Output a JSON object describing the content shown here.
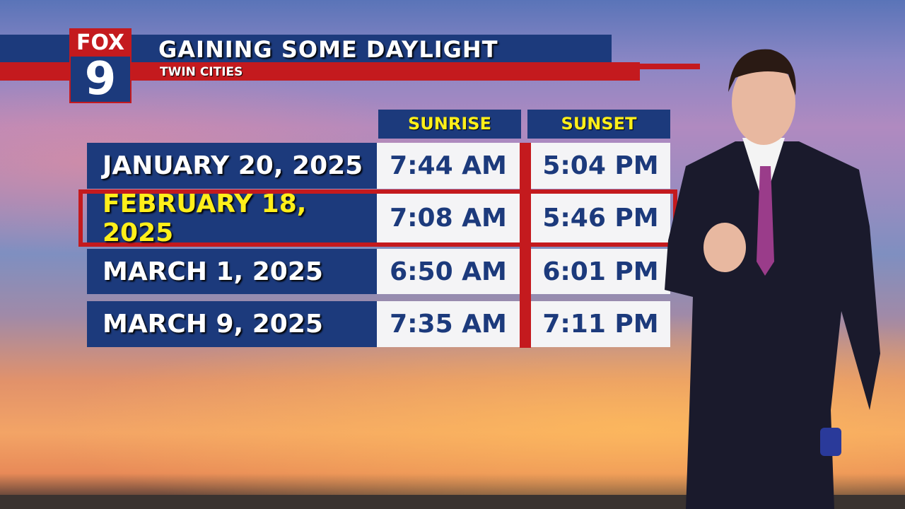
{
  "header": {
    "title": "GAINING SOME DAYLIGHT",
    "subtitle": "TWIN CITIES"
  },
  "logo": {
    "top": "FOX",
    "bottom": "9"
  },
  "table": {
    "columns": [
      "SUNRISE",
      "SUNSET"
    ],
    "rows": [
      {
        "date": "JANUARY 20, 2025",
        "sunrise": "7:44 AM",
        "sunset": "5:04 PM",
        "highlighted": false
      },
      {
        "date": "FEBRUARY 18, 2025",
        "sunrise": "7:08 AM",
        "sunset": "5:46 PM",
        "highlighted": true
      },
      {
        "date": "MARCH 1, 2025",
        "sunrise": "6:50 AM",
        "sunset": "6:01 PM",
        "highlighted": false
      },
      {
        "date": "MARCH 9, 2025",
        "sunrise": "7:35 AM",
        "sunset": "7:11 PM",
        "highlighted": false
      }
    ]
  },
  "colors": {
    "navy": "#1c3a7c",
    "red": "#c41a1e",
    "highlight_text": "#ffef1a"
  }
}
